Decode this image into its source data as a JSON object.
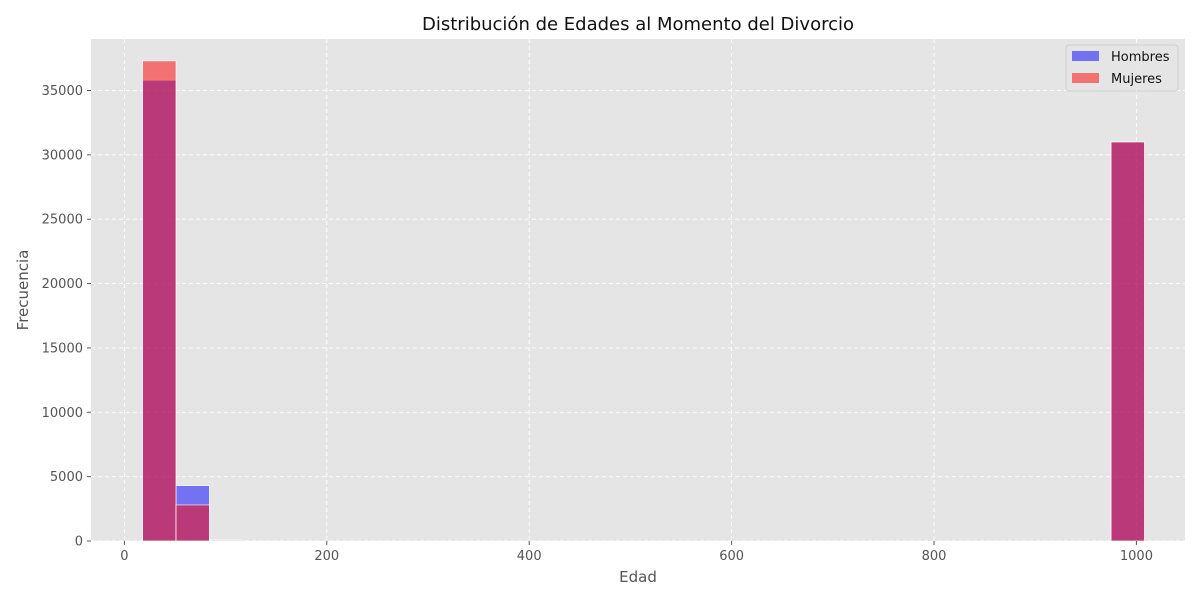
{
  "chart_data": {
    "type": "bar",
    "title": "Distribución de Edades al Momento del Divorcio",
    "xlabel": "Edad",
    "ylabel": "Frecuencia",
    "xlim": [
      -33,
      1048
    ],
    "ylim": [
      0,
      39000
    ],
    "x_ticks": [
      0,
      200,
      400,
      600,
      800,
      1000
    ],
    "y_ticks": [
      0,
      5000,
      10000,
      15000,
      20000,
      25000,
      30000,
      35000
    ],
    "grid": true,
    "legend_position": "top-right",
    "bins": [
      [
        18,
        51
      ],
      [
        51,
        84
      ],
      [
        84,
        117
      ],
      [
        117,
        150
      ],
      [
        150,
        183
      ],
      [
        183,
        216
      ],
      [
        216,
        249
      ],
      [
        249,
        282
      ],
      [
        282,
        315
      ],
      [
        315,
        348
      ],
      [
        348,
        381
      ],
      [
        381,
        414
      ],
      [
        414,
        447
      ],
      [
        447,
        480
      ],
      [
        480,
        513
      ],
      [
        513,
        546
      ],
      [
        546,
        579
      ],
      [
        579,
        612
      ],
      [
        612,
        645
      ],
      [
        645,
        678
      ],
      [
        678,
        711
      ],
      [
        711,
        744
      ],
      [
        744,
        777
      ],
      [
        777,
        810
      ],
      [
        810,
        843
      ],
      [
        843,
        876
      ],
      [
        876,
        909
      ],
      [
        909,
        942
      ],
      [
        942,
        975
      ],
      [
        975,
        1008
      ]
    ],
    "series": [
      {
        "name": "Hombres",
        "color": "#0000ff",
        "opacity": 0.5,
        "values": [
          35800,
          4300,
          80,
          0,
          0,
          0,
          0,
          0,
          0,
          0,
          0,
          0,
          0,
          0,
          0,
          0,
          0,
          0,
          0,
          0,
          0,
          0,
          0,
          0,
          0,
          0,
          0,
          0,
          0,
          31000
        ]
      },
      {
        "name": "Mujeres",
        "color": "#ff0000",
        "opacity": 0.5,
        "values": [
          37300,
          2800,
          30,
          0,
          0,
          0,
          0,
          0,
          0,
          0,
          0,
          0,
          0,
          0,
          0,
          0,
          0,
          0,
          0,
          0,
          0,
          0,
          0,
          0,
          0,
          0,
          0,
          0,
          0,
          31000
        ]
      }
    ]
  },
  "colors": {
    "plot_background": "#e5e5e5",
    "grid": "#ffffff"
  }
}
